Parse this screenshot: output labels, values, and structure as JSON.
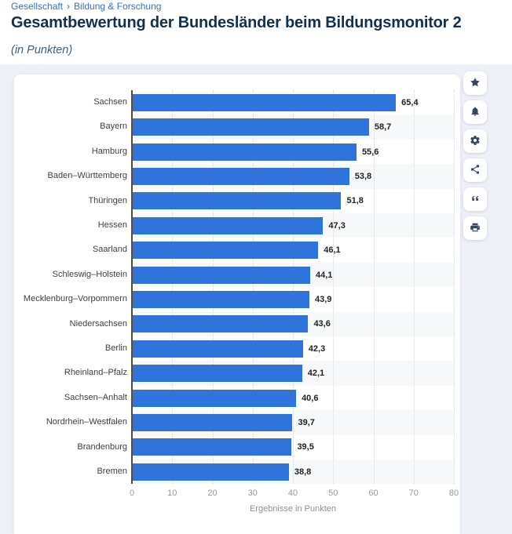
{
  "breadcrumb": {
    "items": [
      "Gesellschaft",
      "Bildung & Forschung"
    ],
    "separator": "›"
  },
  "header": {
    "title": "Gesamtbewertung der Bundesländer beim Bildungsmonitor 2",
    "subtitle": "(in Punkten)"
  },
  "chart_data": {
    "type": "bar",
    "orientation": "horizontal",
    "categories": [
      "Sachsen",
      "Bayern",
      "Hamburg",
      "Baden–Württemberg",
      "Thüringen",
      "Hessen",
      "Saarland",
      "Schleswig–Holstein",
      "Mecklenburg–Vorpommern",
      "Niedersachsen",
      "Berlin",
      "Rheinland–Pfalz",
      "Sachsen–Anhalt",
      "Nordrhein–Westfalen",
      "Brandenburg",
      "Bremen"
    ],
    "values": [
      65.4,
      58.7,
      55.6,
      53.8,
      51.8,
      47.3,
      46.1,
      44.1,
      43.9,
      43.6,
      42.3,
      42.1,
      40.6,
      39.7,
      39.5,
      38.8
    ],
    "value_labels": [
      "65,4",
      "58,7",
      "55,6",
      "53,8",
      "51,8",
      "47,3",
      "46,1",
      "44,1",
      "43,9",
      "43,6",
      "42,3",
      "42,1",
      "40,6",
      "39,7",
      "39,5",
      "38,8"
    ],
    "xlabel": "Ergebnisse in Punkten",
    "xlim": [
      0,
      80
    ],
    "xticks": [
      0,
      10,
      20,
      30,
      40,
      50,
      60,
      70,
      80
    ],
    "grid": "vertical-dotted",
    "legend": "none",
    "bar_color": "#2e74da",
    "band_color": "#f7f8f9",
    "axis_color": "#4f4f4f"
  },
  "toolbar": {
    "buttons": [
      {
        "name": "favorite",
        "icon": "star-icon"
      },
      {
        "name": "notifications",
        "icon": "bell-icon"
      },
      {
        "name": "settings",
        "icon": "gear-icon"
      },
      {
        "name": "share",
        "icon": "share-icon"
      },
      {
        "name": "cite",
        "icon": "quote-icon"
      },
      {
        "name": "print",
        "icon": "printer-icon"
      }
    ]
  }
}
